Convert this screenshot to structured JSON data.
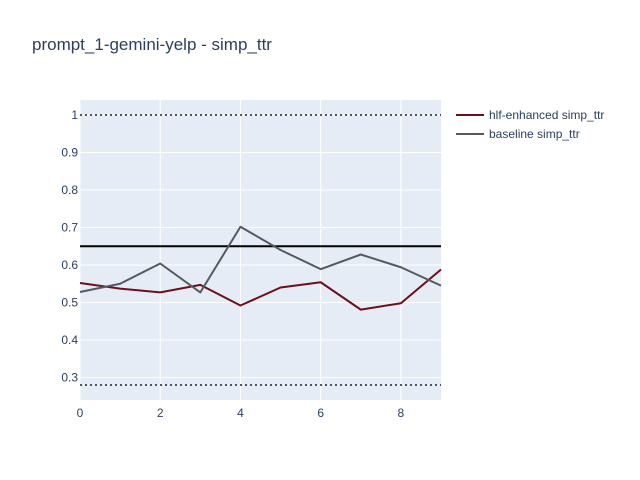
{
  "chart_data": {
    "type": "line",
    "title": "prompt_1-gemini-yelp - simp_ttr",
    "xlabel": "",
    "ylabel": "",
    "x": [
      0,
      1,
      2,
      3,
      4,
      5,
      6,
      7,
      8,
      9
    ],
    "xlim": [
      0,
      9
    ],
    "ylim": [
      0.24,
      1.04
    ],
    "x_ticks": [
      0,
      2,
      4,
      6,
      8
    ],
    "y_ticks": [
      0.3,
      0.4,
      0.5,
      0.6,
      0.7,
      0.8,
      0.9,
      1
    ],
    "x_tick_labels": [
      "0",
      "2",
      "4",
      "6",
      "8"
    ],
    "y_tick_labels": [
      "0.3",
      "0.4",
      "0.5",
      "0.6",
      "0.7",
      "0.8",
      "0.9",
      "1"
    ],
    "grid": true,
    "legend_position": "top-right",
    "series": [
      {
        "name": "hlf-enhanced simp_ttr",
        "color": "#6b0f1a",
        "values": [
          0.552,
          0.537,
          0.527,
          0.547,
          0.492,
          0.54,
          0.554,
          0.481,
          0.498,
          0.588
        ]
      },
      {
        "name": "baseline simp_ttr",
        "color": "#555a60",
        "values": [
          0.528,
          0.55,
          0.604,
          0.527,
          0.702,
          0.64,
          0.589,
          0.628,
          0.594,
          0.545
        ]
      }
    ],
    "reference_lines": [
      {
        "y": 1.0,
        "style": "dotted",
        "color": "#222222"
      },
      {
        "y": 0.65,
        "style": "solid",
        "color": "#000000"
      },
      {
        "y": 0.28,
        "style": "dotted",
        "color": "#222222"
      }
    ]
  }
}
